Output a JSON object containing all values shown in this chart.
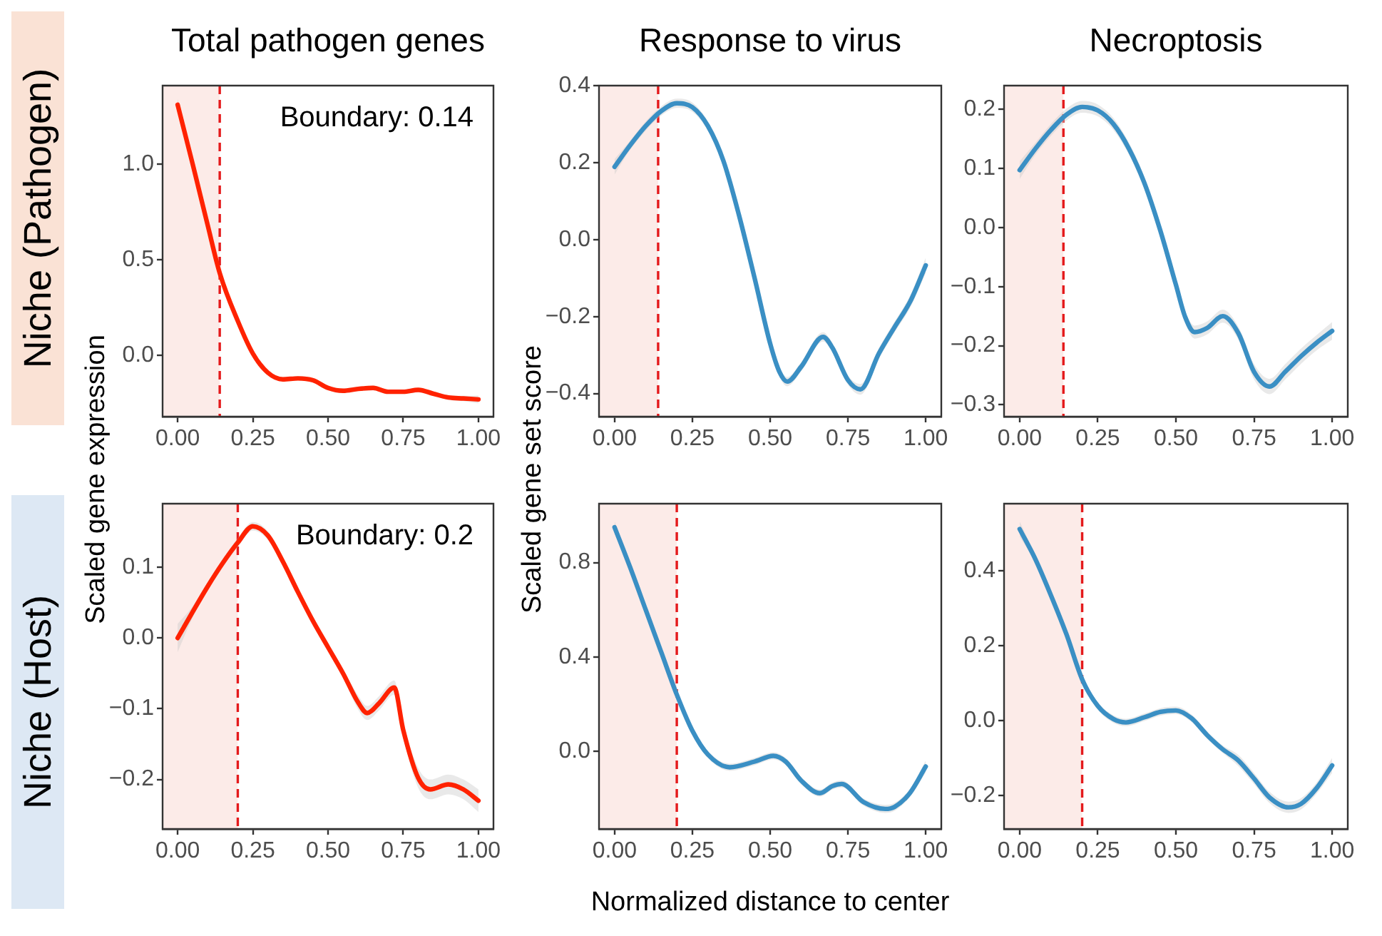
{
  "chart_data": [
    {
      "type": "line",
      "title": "Total pathogen genes",
      "ylabel": "Scaled gene expression",
      "annotations": [
        "Niche (Pathogen)"
      ],
      "x": [
        0,
        0.05,
        0.1,
        0.14,
        0.2,
        0.25,
        0.3,
        0.35,
        0.4,
        0.45,
        0.5,
        0.55,
        0.6,
        0.65,
        0.7,
        0.75,
        0.8,
        0.85,
        0.9,
        0.95,
        1
      ],
      "series": [
        {
          "color": "#ff2200",
          "values": [
            1.31,
            1.0,
            0.68,
            0.43,
            0.18,
            0.01,
            -0.09,
            -0.125,
            -0.12,
            -0.13,
            -0.17,
            -0.185,
            -0.175,
            -0.17,
            -0.19,
            -0.19,
            -0.18,
            -0.2,
            -0.22,
            -0.225,
            -0.23
          ],
          "lower": [
            1.28,
            0.98,
            0.668,
            0.418,
            0.168,
            -0.002,
            -0.102,
            -0.137,
            -0.132,
            -0.142,
            -0.182,
            -0.197,
            -0.187,
            -0.182,
            -0.202,
            -0.202,
            -0.192,
            -0.212,
            -0.232,
            -0.239,
            -0.25
          ],
          "upper": [
            1.34,
            1.02,
            0.692,
            0.442,
            0.192,
            0.022,
            -0.078,
            -0.113,
            -0.108,
            -0.118,
            -0.158,
            -0.173,
            -0.163,
            -0.158,
            -0.178,
            -0.178,
            -0.168,
            -0.188,
            -0.208,
            -0.211,
            -0.21
          ]
        }
      ],
      "xlim": [
        -0.05,
        1.05
      ],
      "ylim": [
        -0.32,
        1.41
      ],
      "xticks": [
        {
          "value": 0,
          "label": "0.00"
        },
        {
          "value": 0.25,
          "label": "0.25"
        },
        {
          "value": 0.5,
          "label": "0.50"
        },
        {
          "value": 0.75,
          "label": "0.75"
        },
        {
          "value": 1,
          "label": "1.00"
        }
      ],
      "yticks": [
        {
          "value": 0,
          "label": "0.0"
        },
        0.5,
        {
          "value": 1,
          "label": "1.0"
        }
      ],
      "bands": [
        {
          "axis": "x",
          "from": -0.05,
          "to": 0.14,
          "color": "#fcebe8"
        }
      ],
      "ref_lines": [
        {
          "axis": "x",
          "value": 0.14,
          "label": "Boundary: 0.14",
          "color": "#e41a1c",
          "line_style": "dashed"
        }
      ]
    },
    {
      "type": "line",
      "title": "Response to virus",
      "ylabel": "Scaled gene set score",
      "x": [
        0,
        0.05,
        0.1,
        0.15,
        0.2,
        0.25,
        0.3,
        0.35,
        0.4,
        0.45,
        0.5,
        0.53,
        0.555,
        0.6,
        0.67,
        0.7,
        0.75,
        0.79,
        0.85,
        0.9,
        0.95,
        1
      ],
      "series": [
        {
          "color": "#3a8fc4",
          "values": [
            0.189,
            0.245,
            0.295,
            0.334,
            0.354,
            0.344,
            0.295,
            0.204,
            0.063,
            -0.1,
            -0.27,
            -0.344,
            -0.369,
            -0.33,
            -0.253,
            -0.281,
            -0.365,
            -0.389,
            -0.295,
            -0.227,
            -0.161,
            -0.067
          ],
          "lower": [
            0.169,
            0.233,
            0.283,
            0.322,
            0.342,
            0.332,
            0.283,
            0.192,
            0.051,
            -0.112,
            -0.282,
            -0.356,
            -0.381,
            -0.342,
            -0.265,
            -0.293,
            -0.377,
            -0.403,
            -0.309,
            -0.241,
            -0.177,
            -0.087
          ],
          "upper": [
            0.209,
            0.257,
            0.307,
            0.346,
            0.366,
            0.356,
            0.307,
            0.216,
            0.075,
            -0.088,
            -0.258,
            -0.332,
            -0.357,
            -0.318,
            -0.241,
            -0.269,
            -0.353,
            -0.375,
            -0.281,
            -0.213,
            -0.145,
            -0.047
          ]
        }
      ],
      "xlim": [
        -0.05,
        1.05
      ],
      "ylim": [
        -0.46,
        0.4
      ],
      "xticks": [
        {
          "value": 0,
          "label": "0.00"
        },
        {
          "value": 0.25,
          "label": "0.25"
        },
        {
          "value": 0.5,
          "label": "0.50"
        },
        {
          "value": 0.75,
          "label": "0.75"
        },
        {
          "value": 1,
          "label": "1.00"
        }
      ],
      "yticks": [
        {
          "value": -0.4,
          "label": "−0.4"
        },
        {
          "value": -0.2,
          "label": "−0.2"
        },
        {
          "value": 0,
          "label": "0.0"
        },
        0.2,
        0.4
      ],
      "bands": [
        {
          "axis": "x",
          "from": -0.05,
          "to": 0.14,
          "color": "#fcebe8"
        }
      ],
      "ref_lines": [
        {
          "axis": "x",
          "value": 0.14,
          "color": "#e41a1c",
          "line_style": "dashed"
        }
      ]
    },
    {
      "type": "line",
      "title": "Necroptosis",
      "x": [
        0,
        0.05,
        0.1,
        0.15,
        0.2,
        0.25,
        0.3,
        0.35,
        0.4,
        0.45,
        0.5,
        0.53,
        0.56,
        0.6,
        0.65,
        0.7,
        0.75,
        0.8,
        0.85,
        0.9,
        0.95,
        1
      ],
      "series": [
        {
          "color": "#3a8fc4",
          "values": [
            0.097,
            0.133,
            0.165,
            0.191,
            0.204,
            0.198,
            0.175,
            0.133,
            0.074,
            -0.005,
            -0.097,
            -0.152,
            -0.177,
            -0.17,
            -0.15,
            -0.179,
            -0.244,
            -0.269,
            -0.244,
            -0.218,
            -0.195,
            -0.175
          ],
          "lower": [
            0.082,
            0.123,
            0.155,
            0.181,
            0.194,
            0.188,
            0.165,
            0.123,
            0.064,
            -0.015,
            -0.107,
            -0.162,
            -0.188,
            -0.181,
            -0.161,
            -0.19,
            -0.257,
            -0.282,
            -0.257,
            -0.231,
            -0.208,
            -0.19
          ],
          "upper": [
            0.112,
            0.143,
            0.175,
            0.201,
            0.214,
            0.208,
            0.185,
            0.143,
            0.084,
            0.005,
            -0.087,
            -0.142,
            -0.166,
            -0.159,
            -0.139,
            -0.168,
            -0.231,
            -0.256,
            -0.231,
            -0.205,
            -0.182,
            -0.16
          ]
        }
      ],
      "xlim": [
        -0.05,
        1.05
      ],
      "ylim": [
        -0.32,
        0.24
      ],
      "xticks": [
        {
          "value": 0,
          "label": "0.00"
        },
        {
          "value": 0.25,
          "label": "0.25"
        },
        {
          "value": 0.5,
          "label": "0.50"
        },
        {
          "value": 0.75,
          "label": "0.75"
        },
        {
          "value": 1,
          "label": "1.00"
        }
      ],
      "yticks": [
        {
          "value": -0.3,
          "label": "−0.3"
        },
        {
          "value": -0.2,
          "label": "−0.2"
        },
        {
          "value": -0.1,
          "label": "−0.1"
        },
        {
          "value": 0,
          "label": "0.0"
        },
        0.1,
        0.2
      ],
      "bands": [
        {
          "axis": "x",
          "from": -0.05,
          "to": 0.14,
          "color": "#fcebe8"
        }
      ],
      "ref_lines": [
        {
          "axis": "x",
          "value": 0.14,
          "color": "#e41a1c",
          "line_style": "dashed"
        }
      ]
    },
    {
      "type": "line",
      "annotations": [
        "Niche (Host)"
      ],
      "x": [
        0,
        0.05,
        0.1,
        0.15,
        0.2,
        0.25,
        0.3,
        0.35,
        0.4,
        0.45,
        0.5,
        0.55,
        0.6,
        0.63,
        0.67,
        0.72,
        0.75,
        0.8,
        0.84,
        0.9,
        0.95,
        1
      ],
      "series": [
        {
          "color": "#ff2200",
          "values": [
            0.0,
            0.037,
            0.073,
            0.106,
            0.135,
            0.158,
            0.145,
            0.108,
            0.065,
            0.024,
            -0.013,
            -0.05,
            -0.091,
            -0.106,
            -0.092,
            -0.07,
            -0.13,
            -0.198,
            -0.214,
            -0.207,
            -0.214,
            -0.23
          ],
          "lower": [
            -0.02,
            0.029,
            0.067,
            0.1,
            0.129,
            0.152,
            0.139,
            0.102,
            0.059,
            0.018,
            -0.019,
            -0.056,
            -0.101,
            -0.116,
            -0.102,
            -0.08,
            -0.14,
            -0.212,
            -0.228,
            -0.221,
            -0.228,
            -0.246
          ],
          "upper": [
            0.02,
            0.045,
            0.079,
            0.112,
            0.141,
            0.164,
            0.151,
            0.114,
            0.071,
            0.03,
            -0.007,
            -0.044,
            -0.081,
            -0.096,
            -0.082,
            -0.06,
            -0.12,
            -0.184,
            -0.2,
            -0.193,
            -0.2,
            -0.214
          ]
        }
      ],
      "xlim": [
        -0.05,
        1.05
      ],
      "ylim": [
        -0.27,
        0.19
      ],
      "xticks": [
        {
          "value": 0,
          "label": "0.00"
        },
        {
          "value": 0.25,
          "label": "0.25"
        },
        {
          "value": 0.5,
          "label": "0.50"
        },
        {
          "value": 0.75,
          "label": "0.75"
        },
        {
          "value": 1,
          "label": "1.00"
        }
      ],
      "yticks": [
        {
          "value": -0.2,
          "label": "−0.2"
        },
        {
          "value": -0.1,
          "label": "−0.1"
        },
        {
          "value": 0,
          "label": "0.0"
        },
        0.1
      ],
      "bands": [
        {
          "axis": "x",
          "from": -0.05,
          "to": 0.2,
          "color": "#fcebe8"
        }
      ],
      "ref_lines": [
        {
          "axis": "x",
          "value": 0.2,
          "label": "Boundary: 0.2",
          "color": "#e41a1c",
          "line_style": "dashed"
        }
      ]
    },
    {
      "type": "line",
      "xlabel": "Normalized distance to center",
      "x": [
        0,
        0.05,
        0.1,
        0.15,
        0.2,
        0.25,
        0.3,
        0.37,
        0.45,
        0.51,
        0.55,
        0.6,
        0.66,
        0.7,
        0.73,
        0.8,
        0.87,
        0.9,
        0.95,
        1
      ],
      "series": [
        {
          "color": "#3a8fc4",
          "values": [
            0.95,
            0.78,
            0.6,
            0.42,
            0.24,
            0.087,
            -0.014,
            -0.068,
            -0.044,
            -0.02,
            -0.044,
            -0.125,
            -0.178,
            -0.148,
            -0.139,
            -0.216,
            -0.245,
            -0.236,
            -0.176,
            -0.065
          ],
          "lower": [
            0.925,
            0.765,
            0.585,
            0.405,
            0.225,
            0.072,
            -0.029,
            -0.083,
            -0.059,
            -0.035,
            -0.059,
            -0.14,
            -0.193,
            -0.163,
            -0.154,
            -0.231,
            -0.262,
            -0.253,
            -0.193,
            -0.09
          ],
          "upper": [
            0.975,
            0.795,
            0.615,
            0.435,
            0.255,
            0.102,
            0.001,
            -0.053,
            -0.029,
            -0.005,
            -0.029,
            -0.11,
            -0.163,
            -0.133,
            -0.124,
            -0.201,
            -0.228,
            -0.219,
            -0.159,
            -0.04
          ]
        }
      ],
      "xlim": [
        -0.05,
        1.05
      ],
      "ylim": [
        -0.33,
        1.05
      ],
      "xticks": [
        {
          "value": 0,
          "label": "0.00"
        },
        {
          "value": 0.25,
          "label": "0.25"
        },
        {
          "value": 0.5,
          "label": "0.50"
        },
        {
          "value": 0.75,
          "label": "0.75"
        },
        {
          "value": 1,
          "label": "1.00"
        }
      ],
      "yticks": [
        {
          "value": 0,
          "label": "0.0"
        },
        0.4,
        0.8
      ],
      "bands": [
        {
          "axis": "x",
          "from": -0.05,
          "to": 0.2,
          "color": "#fcebe8"
        }
      ],
      "ref_lines": [
        {
          "axis": "x",
          "value": 0.2,
          "color": "#e41a1c",
          "line_style": "dashed"
        }
      ]
    },
    {
      "type": "line",
      "x": [
        0,
        0.05,
        0.1,
        0.15,
        0.2,
        0.25,
        0.3,
        0.34,
        0.4,
        0.45,
        0.5,
        0.55,
        0.6,
        0.65,
        0.7,
        0.75,
        0.8,
        0.86,
        0.9,
        0.95,
        1
      ],
      "series": [
        {
          "color": "#3a8fc4",
          "values": [
            0.512,
            0.432,
            0.335,
            0.23,
            0.11,
            0.039,
            0.004,
            -0.005,
            0.009,
            0.023,
            0.027,
            0.006,
            -0.039,
            -0.077,
            -0.107,
            -0.155,
            -0.206,
            -0.232,
            -0.223,
            -0.181,
            -0.12
          ],
          "lower": [
            0.492,
            0.422,
            0.325,
            0.22,
            0.1,
            0.029,
            -0.006,
            -0.015,
            -0.001,
            0.013,
            0.017,
            -0.004,
            -0.049,
            -0.087,
            -0.122,
            -0.17,
            -0.221,
            -0.247,
            -0.238,
            -0.196,
            -0.14
          ],
          "upper": [
            0.532,
            0.442,
            0.345,
            0.24,
            0.12,
            0.049,
            0.014,
            0.005,
            0.019,
            0.033,
            0.037,
            0.016,
            -0.029,
            -0.067,
            -0.092,
            -0.14,
            -0.191,
            -0.217,
            -0.208,
            -0.166,
            -0.1
          ]
        }
      ],
      "xlim": [
        -0.05,
        1.05
      ],
      "ylim": [
        -0.29,
        0.58
      ],
      "xticks": [
        {
          "value": 0,
          "label": "0.00"
        },
        {
          "value": 0.25,
          "label": "0.25"
        },
        {
          "value": 0.5,
          "label": "0.50"
        },
        {
          "value": 0.75,
          "label": "0.75"
        },
        {
          "value": 1,
          "label": "1.00"
        }
      ],
      "yticks": [
        {
          "value": -0.2,
          "label": "−0.2"
        },
        {
          "value": 0,
          "label": "0.0"
        },
        0.2,
        0.4
      ],
      "bands": [
        {
          "axis": "x",
          "from": -0.05,
          "to": 0.2,
          "color": "#fcebe8"
        }
      ],
      "ref_lines": [
        {
          "axis": "x",
          "value": 0.2,
          "color": "#e41a1c",
          "line_style": "dashed"
        }
      ]
    }
  ]
}
